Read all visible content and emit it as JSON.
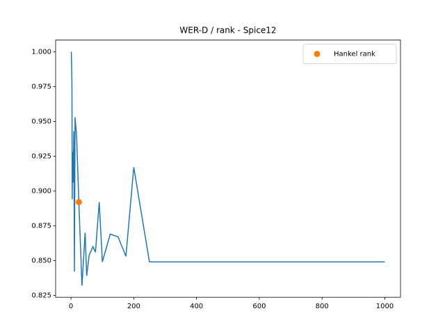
{
  "chart_data": {
    "type": "line",
    "title": "WER-D / rank - Spice12",
    "series": [
      {
        "color": "#1f77b4",
        "style": "line",
        "x": [
          1,
          3,
          4,
          5,
          7,
          9,
          11,
          13,
          18,
          25,
          35,
          45,
          50,
          58,
          70,
          78,
          90,
          100,
          125,
          150,
          175,
          200,
          250,
          1000
        ],
        "values": [
          1.0,
          0.978,
          0.894,
          0.928,
          0.906,
          0.943,
          0.842,
          0.953,
          0.939,
          0.892,
          0.832,
          0.87,
          0.839,
          0.854,
          0.86,
          0.856,
          0.892,
          0.849,
          0.869,
          0.867,
          0.853,
          0.917,
          0.849,
          0.849
        ]
      },
      {
        "name": "Hankel rank",
        "color": "#ff7f0e",
        "style": "marker",
        "x": [
          25
        ],
        "values": [
          0.892
        ]
      }
    ],
    "xlim": [
      -48.95,
      1049.95
    ],
    "xticks": [
      0,
      200,
      400,
      600,
      800,
      1000
    ],
    "ylim": [
      0.8236,
      1.0084
    ],
    "yticks": [
      {
        "value": 0.825,
        "label": "0.825"
      },
      {
        "value": 0.85,
        "label": "0.850"
      },
      {
        "value": 0.875,
        "label": "0.875"
      },
      {
        "value": 0.9,
        "label": "0.900"
      },
      {
        "value": 0.925,
        "label": "0.925"
      },
      {
        "value": 0.95,
        "label": "0.950"
      },
      {
        "value": 0.975,
        "label": "0.975"
      },
      {
        "value": 1.0,
        "label": "1.000"
      }
    ],
    "legend": "upper right"
  }
}
